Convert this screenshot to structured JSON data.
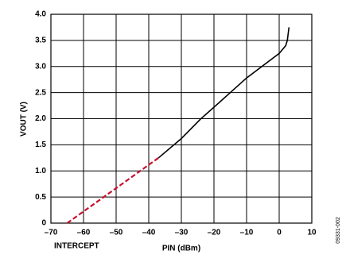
{
  "chart_data": {
    "type": "line",
    "xlabel": "PIN (dBm)",
    "ylabel": "VOUT (V)",
    "annotations": [
      "INTERCEPT",
      "09331-002"
    ],
    "xlim": [
      -70,
      10
    ],
    "xticks": [
      {
        "value": -70,
        "label": "–70"
      },
      {
        "value": -60,
        "label": "–60"
      },
      {
        "value": -50,
        "label": "–50"
      },
      {
        "value": -40,
        "label": "–40"
      },
      {
        "value": -30,
        "label": "–30"
      },
      {
        "value": -20,
        "label": "–20"
      },
      {
        "value": -10,
        "label": "–10"
      },
      0,
      10
    ],
    "ylim": [
      0,
      4
    ],
    "yticks": [
      0,
      0.5,
      {
        "value": 1,
        "label": "1.0"
      },
      1.5,
      {
        "value": 2,
        "label": "2.0"
      },
      2.5,
      {
        "value": 3,
        "label": "3.0"
      },
      3.5,
      {
        "value": 4,
        "label": "4.0"
      }
    ],
    "grid": true,
    "series": [
      {
        "color": "#000000",
        "style": "solid",
        "x": [
          -37,
          -30,
          -24,
          -20,
          -10,
          0,
          2,
          2.5,
          3
        ],
        "y": [
          1.25,
          1.62,
          2.0,
          2.22,
          2.78,
          3.25,
          3.4,
          3.5,
          3.75
        ]
      },
      {
        "color": "#c8102e",
        "style": "dashed",
        "x": [
          -65,
          -37
        ],
        "y": [
          0,
          1.25
        ]
      }
    ]
  }
}
